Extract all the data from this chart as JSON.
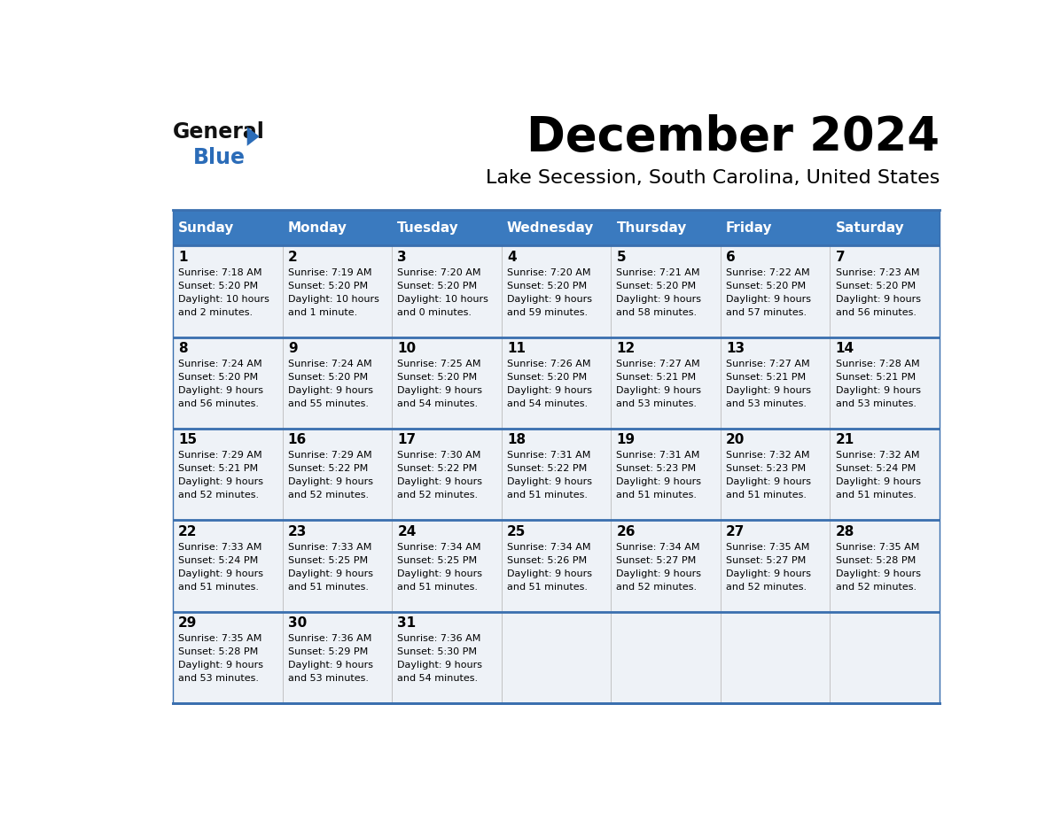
{
  "title": "December 2024",
  "subtitle": "Lake Secession, South Carolina, United States",
  "header_color": "#3a7abf",
  "header_text_color": "#ffffff",
  "cell_bg_color": "#eef2f7",
  "border_color": "#2e5fa3",
  "row_border_color": "#3a6faf",
  "days_of_week": [
    "Sunday",
    "Monday",
    "Tuesday",
    "Wednesday",
    "Thursday",
    "Friday",
    "Saturday"
  ],
  "calendar_data": [
    [
      {
        "day": 1,
        "sunrise": "7:18 AM",
        "sunset": "5:20 PM",
        "daylight_line1": "10 hours",
        "daylight_line2": "and 2 minutes."
      },
      {
        "day": 2,
        "sunrise": "7:19 AM",
        "sunset": "5:20 PM",
        "daylight_line1": "10 hours",
        "daylight_line2": "and 1 minute."
      },
      {
        "day": 3,
        "sunrise": "7:20 AM",
        "sunset": "5:20 PM",
        "daylight_line1": "10 hours",
        "daylight_line2": "and 0 minutes."
      },
      {
        "day": 4,
        "sunrise": "7:20 AM",
        "sunset": "5:20 PM",
        "daylight_line1": "9 hours",
        "daylight_line2": "and 59 minutes."
      },
      {
        "day": 5,
        "sunrise": "7:21 AM",
        "sunset": "5:20 PM",
        "daylight_line1": "9 hours",
        "daylight_line2": "and 58 minutes."
      },
      {
        "day": 6,
        "sunrise": "7:22 AM",
        "sunset": "5:20 PM",
        "daylight_line1": "9 hours",
        "daylight_line2": "and 57 minutes."
      },
      {
        "day": 7,
        "sunrise": "7:23 AM",
        "sunset": "5:20 PM",
        "daylight_line1": "9 hours",
        "daylight_line2": "and 56 minutes."
      }
    ],
    [
      {
        "day": 8,
        "sunrise": "7:24 AM",
        "sunset": "5:20 PM",
        "daylight_line1": "9 hours",
        "daylight_line2": "and 56 minutes."
      },
      {
        "day": 9,
        "sunrise": "7:24 AM",
        "sunset": "5:20 PM",
        "daylight_line1": "9 hours",
        "daylight_line2": "and 55 minutes."
      },
      {
        "day": 10,
        "sunrise": "7:25 AM",
        "sunset": "5:20 PM",
        "daylight_line1": "9 hours",
        "daylight_line2": "and 54 minutes."
      },
      {
        "day": 11,
        "sunrise": "7:26 AM",
        "sunset": "5:20 PM",
        "daylight_line1": "9 hours",
        "daylight_line2": "and 54 minutes."
      },
      {
        "day": 12,
        "sunrise": "7:27 AM",
        "sunset": "5:21 PM",
        "daylight_line1": "9 hours",
        "daylight_line2": "and 53 minutes."
      },
      {
        "day": 13,
        "sunrise": "7:27 AM",
        "sunset": "5:21 PM",
        "daylight_line1": "9 hours",
        "daylight_line2": "and 53 minutes."
      },
      {
        "day": 14,
        "sunrise": "7:28 AM",
        "sunset": "5:21 PM",
        "daylight_line1": "9 hours",
        "daylight_line2": "and 53 minutes."
      }
    ],
    [
      {
        "day": 15,
        "sunrise": "7:29 AM",
        "sunset": "5:21 PM",
        "daylight_line1": "9 hours",
        "daylight_line2": "and 52 minutes."
      },
      {
        "day": 16,
        "sunrise": "7:29 AM",
        "sunset": "5:22 PM",
        "daylight_line1": "9 hours",
        "daylight_line2": "and 52 minutes."
      },
      {
        "day": 17,
        "sunrise": "7:30 AM",
        "sunset": "5:22 PM",
        "daylight_line1": "9 hours",
        "daylight_line2": "and 52 minutes."
      },
      {
        "day": 18,
        "sunrise": "7:31 AM",
        "sunset": "5:22 PM",
        "daylight_line1": "9 hours",
        "daylight_line2": "and 51 minutes."
      },
      {
        "day": 19,
        "sunrise": "7:31 AM",
        "sunset": "5:23 PM",
        "daylight_line1": "9 hours",
        "daylight_line2": "and 51 minutes."
      },
      {
        "day": 20,
        "sunrise": "7:32 AM",
        "sunset": "5:23 PM",
        "daylight_line1": "9 hours",
        "daylight_line2": "and 51 minutes."
      },
      {
        "day": 21,
        "sunrise": "7:32 AM",
        "sunset": "5:24 PM",
        "daylight_line1": "9 hours",
        "daylight_line2": "and 51 minutes."
      }
    ],
    [
      {
        "day": 22,
        "sunrise": "7:33 AM",
        "sunset": "5:24 PM",
        "daylight_line1": "9 hours",
        "daylight_line2": "and 51 minutes."
      },
      {
        "day": 23,
        "sunrise": "7:33 AM",
        "sunset": "5:25 PM",
        "daylight_line1": "9 hours",
        "daylight_line2": "and 51 minutes."
      },
      {
        "day": 24,
        "sunrise": "7:34 AM",
        "sunset": "5:25 PM",
        "daylight_line1": "9 hours",
        "daylight_line2": "and 51 minutes."
      },
      {
        "day": 25,
        "sunrise": "7:34 AM",
        "sunset": "5:26 PM",
        "daylight_line1": "9 hours",
        "daylight_line2": "and 51 minutes."
      },
      {
        "day": 26,
        "sunrise": "7:34 AM",
        "sunset": "5:27 PM",
        "daylight_line1": "9 hours",
        "daylight_line2": "and 52 minutes."
      },
      {
        "day": 27,
        "sunrise": "7:35 AM",
        "sunset": "5:27 PM",
        "daylight_line1": "9 hours",
        "daylight_line2": "and 52 minutes."
      },
      {
        "day": 28,
        "sunrise": "7:35 AM",
        "sunset": "5:28 PM",
        "daylight_line1": "9 hours",
        "daylight_line2": "and 52 minutes."
      }
    ],
    [
      {
        "day": 29,
        "sunrise": "7:35 AM",
        "sunset": "5:28 PM",
        "daylight_line1": "9 hours",
        "daylight_line2": "and 53 minutes."
      },
      {
        "day": 30,
        "sunrise": "7:36 AM",
        "sunset": "5:29 PM",
        "daylight_line1": "9 hours",
        "daylight_line2": "and 53 minutes."
      },
      {
        "day": 31,
        "sunrise": "7:36 AM",
        "sunset": "5:30 PM",
        "daylight_line1": "9 hours",
        "daylight_line2": "and 54 minutes."
      },
      null,
      null,
      null,
      null
    ]
  ],
  "logo_general_color": "#1a1a1a",
  "logo_blue_color": "#2b6cb8",
  "logo_triangle_color": "#2b6cb8",
  "title_fontsize": 38,
  "subtitle_fontsize": 16,
  "header_fontsize": 11,
  "day_num_fontsize": 11,
  "cell_text_fontsize": 8
}
